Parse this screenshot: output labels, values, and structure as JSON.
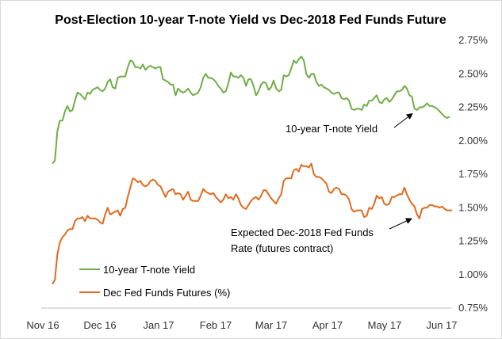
{
  "chart_data": {
    "type": "line",
    "title": "Post-Election 10-year T-note Yield vs Dec-2018 Fed Funds Future",
    "xlabel": "",
    "ylabel": "",
    "ylim": [
      0.75,
      2.75
    ],
    "y_axis_position": "right",
    "y_ticks": [
      "0.75%",
      "1.00%",
      "1.25%",
      "1.50%",
      "1.75%",
      "2.00%",
      "2.25%",
      "2.50%",
      "2.75%"
    ],
    "x_ticks": [
      "Nov 16",
      "Dec 16",
      "Jan 17",
      "Feb 17",
      "Mar 17",
      "Apr 17",
      "May 17",
      "Jun 17"
    ],
    "grid": false,
    "legend": "bottom-left",
    "series": [
      {
        "name": "10-year T-note Yield",
        "color": "#70ad47",
        "values": [
          1.83,
          1.85,
          2.07,
          2.15,
          2.15,
          2.22,
          2.26,
          2.22,
          2.23,
          2.3,
          2.36,
          2.35,
          2.33,
          2.31,
          2.36,
          2.35,
          2.38,
          2.39,
          2.4,
          2.38,
          2.37,
          2.39,
          2.44,
          2.46,
          2.4,
          2.39,
          2.47,
          2.48,
          2.48,
          2.48,
          2.55,
          2.6,
          2.59,
          2.55,
          2.55,
          2.54,
          2.57,
          2.53,
          2.55,
          2.56,
          2.55,
          2.54,
          2.55,
          2.55,
          2.46,
          2.45,
          2.44,
          2.42,
          2.42,
          2.34,
          2.39,
          2.37,
          2.36,
          2.37,
          2.39,
          2.36,
          2.34,
          2.35,
          2.36,
          2.4,
          2.47,
          2.5,
          2.47,
          2.47,
          2.46,
          2.44,
          2.41,
          2.39,
          2.36,
          2.37,
          2.43,
          2.51,
          2.48,
          2.48,
          2.47,
          2.49,
          2.47,
          2.41,
          2.46,
          2.46,
          2.41,
          2.34,
          2.37,
          2.42,
          2.44,
          2.43,
          2.38,
          2.4,
          2.45,
          2.39,
          2.37,
          2.38,
          2.49,
          2.48,
          2.49,
          2.54,
          2.6,
          2.58,
          2.61,
          2.63,
          2.6,
          2.5,
          2.47,
          2.5,
          2.5,
          2.44,
          2.41,
          2.42,
          2.4,
          2.39,
          2.38,
          2.36,
          2.35,
          2.36,
          2.36,
          2.32,
          2.31,
          2.32,
          2.3,
          2.24,
          2.23,
          2.24,
          2.24,
          2.23,
          2.27,
          2.26,
          2.3,
          2.3,
          2.32,
          2.34,
          2.29,
          2.28,
          2.31,
          2.32,
          2.29,
          2.31,
          2.34,
          2.37,
          2.37,
          2.38,
          2.41,
          2.39,
          2.34,
          2.33,
          2.24,
          2.23,
          2.25,
          2.25,
          2.26,
          2.28,
          2.26,
          2.26,
          2.25,
          2.24,
          2.22,
          2.2,
          2.18,
          2.17,
          2.18
        ]
      },
      {
        "name": "Dec Fed Funds Futures (%)",
        "color": "#e06a1f",
        "values": [
          0.93,
          0.96,
          1.15,
          1.24,
          1.28,
          1.3,
          1.33,
          1.34,
          1.34,
          1.4,
          1.42,
          1.42,
          1.43,
          1.4,
          1.44,
          1.42,
          1.42,
          1.42,
          1.41,
          1.39,
          1.38,
          1.45,
          1.5,
          1.45,
          1.46,
          1.47,
          1.48,
          1.44,
          1.49,
          1.5,
          1.58,
          1.65,
          1.72,
          1.71,
          1.69,
          1.7,
          1.67,
          1.66,
          1.67,
          1.7,
          1.71,
          1.7,
          1.67,
          1.66,
          1.62,
          1.58,
          1.62,
          1.63,
          1.64,
          1.6,
          1.61,
          1.6,
          1.56,
          1.59,
          1.62,
          1.56,
          1.55,
          1.55,
          1.55,
          1.59,
          1.64,
          1.62,
          1.61,
          1.6,
          1.61,
          1.58,
          1.56,
          1.54,
          1.56,
          1.6,
          1.57,
          1.58,
          1.56,
          1.6,
          1.57,
          1.52,
          1.5,
          1.49,
          1.52,
          1.55,
          1.57,
          1.58,
          1.56,
          1.59,
          1.63,
          1.63,
          1.6,
          1.57,
          1.55,
          1.53,
          1.57,
          1.6,
          1.7,
          1.72,
          1.72,
          1.72,
          1.78,
          1.79,
          1.77,
          1.82,
          1.81,
          1.81,
          1.8,
          1.83,
          1.75,
          1.73,
          1.73,
          1.72,
          1.7,
          1.68,
          1.62,
          1.61,
          1.64,
          1.65,
          1.64,
          1.6,
          1.6,
          1.59,
          1.56,
          1.49,
          1.47,
          1.48,
          1.48,
          1.48,
          1.43,
          1.44,
          1.5,
          1.49,
          1.53,
          1.59,
          1.57,
          1.58,
          1.53,
          1.52,
          1.53,
          1.58,
          1.58,
          1.59,
          1.6,
          1.6,
          1.65,
          1.6,
          1.56,
          1.53,
          1.51,
          1.45,
          1.42,
          1.49,
          1.5,
          1.5,
          1.52,
          1.52,
          1.51,
          1.51,
          1.5,
          1.51,
          1.49,
          1.48,
          1.48,
          1.48
        ]
      }
    ],
    "annotations": [
      {
        "text": "10-year T-note Yield",
        "x_index": 146,
        "y": 2.23
      },
      {
        "text": "Expected Dec-2018 Fed Funds",
        "line2": "Rate (futures contract)",
        "x_index": 146,
        "y": 1.52
      }
    ]
  }
}
